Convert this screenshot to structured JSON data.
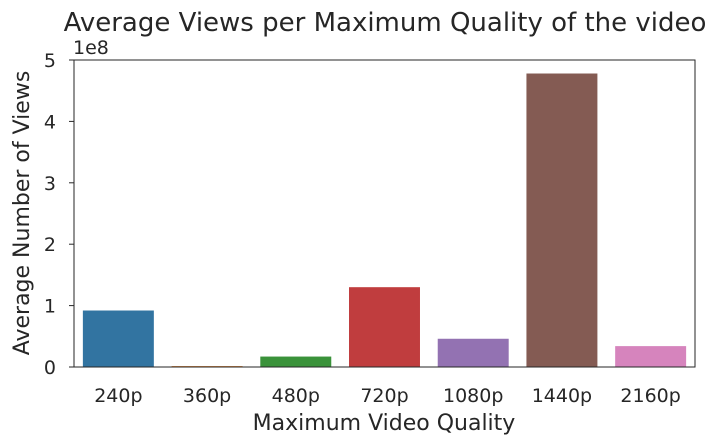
{
  "chart_data": {
    "type": "bar",
    "title": "Average  Views per Maximum Quality of the video",
    "xlabel": "Maximum Video Quality",
    "ylabel": "Average Number of Views",
    "y_offset_label": "1e8",
    "categories": [
      "240p",
      "360p",
      "480p",
      "720p",
      "1080p",
      "1440p",
      "2160p"
    ],
    "values": [
      92000000,
      1500000,
      17000000,
      130000000,
      46000000,
      478000000,
      34000000
    ],
    "ylim": [
      0,
      500000000
    ],
    "y_ticks": [
      0,
      100000000,
      200000000,
      300000000,
      400000000,
      500000000
    ],
    "y_tick_labels": [
      "0",
      "1",
      "2",
      "3",
      "4",
      "5"
    ],
    "colors": [
      "#3274a1",
      "#e1812c",
      "#3a923a",
      "#c03d3e",
      "#9372b2",
      "#845b53",
      "#d684bd"
    ],
    "grid": false,
    "legend": "none"
  }
}
